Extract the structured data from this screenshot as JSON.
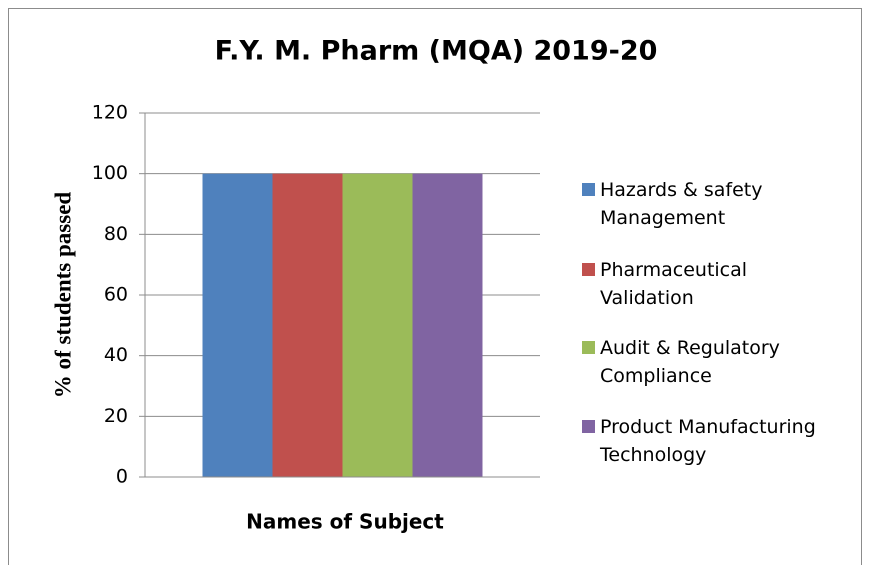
{
  "chart_data": {
    "type": "bar",
    "title": "F.Y. M. Pharm (MQA) 2019-20",
    "y_label": "% of students passed",
    "x_label": "Names of Subject",
    "categories": [
      null
    ],
    "series": [
      {
        "name": "Hazards & safety Management",
        "color": "#4f81bd",
        "values": [
          100
        ]
      },
      {
        "name": "Pharmaceutical Validation",
        "color": "#c0504d",
        "values": [
          100
        ]
      },
      {
        "name": "Audit & Regulatory Compliance",
        "color": "#9bbb59",
        "values": [
          100
        ]
      },
      {
        "name": "Product Manufacturing Technology",
        "color": "#8064a2",
        "values": [
          100
        ]
      }
    ],
    "ylim": [
      0,
      120
    ],
    "yticks": [
      0,
      20,
      40,
      60,
      80,
      100,
      120
    ],
    "grid": true,
    "legend": "right"
  }
}
